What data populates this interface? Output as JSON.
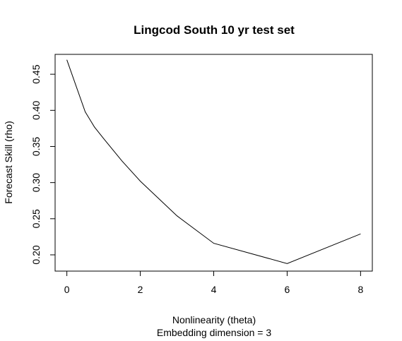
{
  "chart_data": {
    "type": "line",
    "title": "Lingcod South 10 yr test set",
    "xlabel": "Nonlinearity (theta)",
    "subtitle": "Embedding dimension = 3",
    "ylabel": "Forecast Skill (rho)",
    "x": [
      0,
      0.5,
      0.75,
      1,
      1.5,
      2,
      3,
      4,
      6,
      8
    ],
    "y": [
      0.47,
      0.398,
      0.377,
      0.361,
      0.33,
      0.302,
      0.254,
      0.216,
      0.188,
      0.229
    ],
    "xlim": [
      -0.32,
      8.32
    ],
    "ylim": [
      0.1775,
      0.4775
    ],
    "xticks": [
      0,
      2,
      4,
      6,
      8
    ],
    "yticks": [
      0.2,
      0.25,
      0.3,
      0.35,
      0.4,
      0.45
    ],
    "xtick_labels": [
      "0",
      "2",
      "4",
      "6",
      "8"
    ],
    "ytick_labels": [
      "0.20",
      "0.25",
      "0.30",
      "0.35",
      "0.40",
      "0.45"
    ],
    "grid": false,
    "line_color": "#000000"
  }
}
